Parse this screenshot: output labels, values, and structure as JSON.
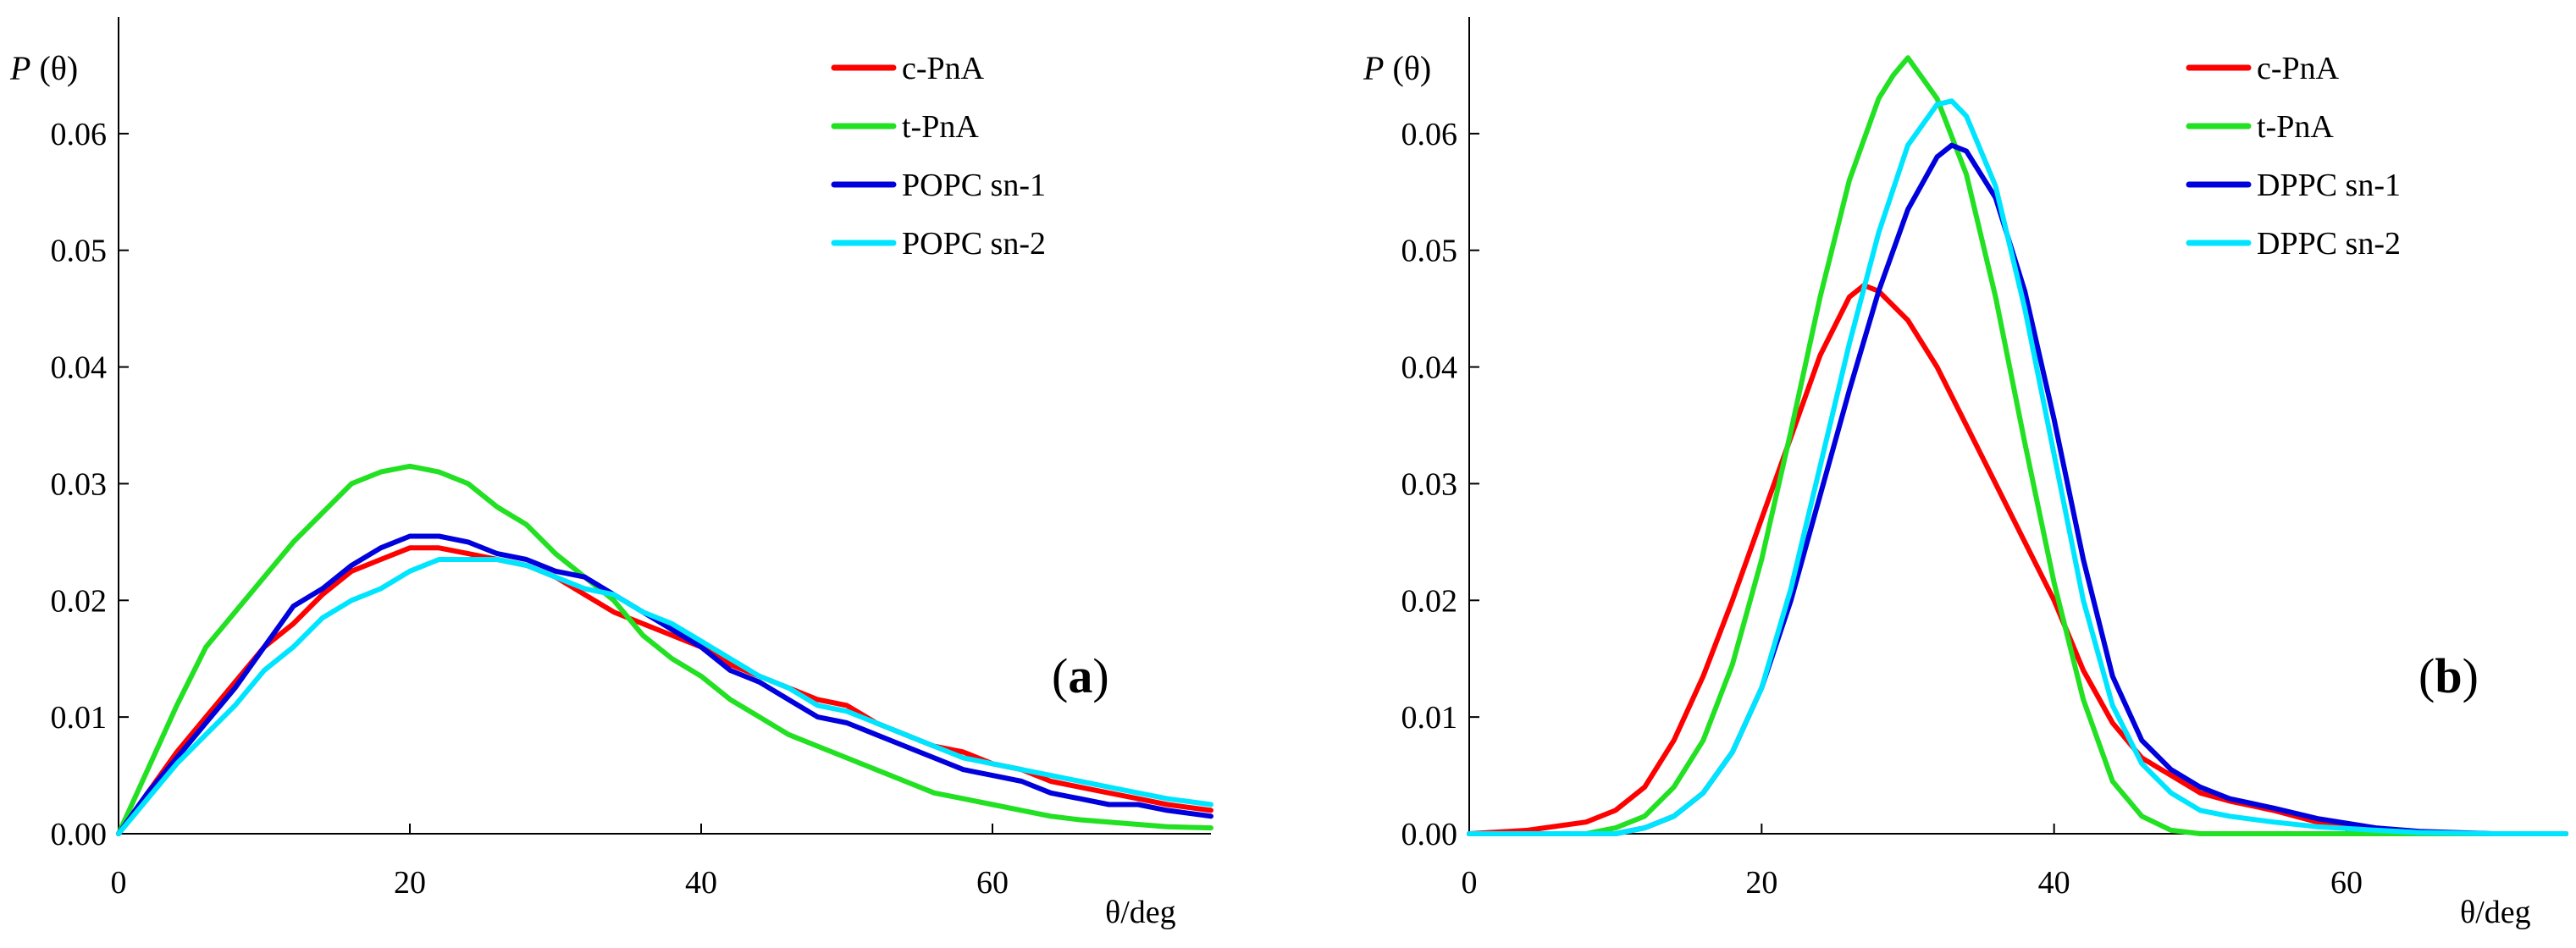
{
  "chart_data": [
    {
      "type": "line",
      "panel_label": "a",
      "ylabel_main": "P",
      "ylabel_arg": "(θ)",
      "xlabel": "θ/deg",
      "xlim": [
        0,
        75
      ],
      "ylim": [
        0,
        0.07
      ],
      "x_ticks": [
        "0",
        "20",
        "40",
        "60"
      ],
      "y_ticks": [
        "0.00",
        "0.01",
        "0.02",
        "0.03",
        "0.04",
        "0.05",
        "0.06"
      ],
      "legend_position": "top-right",
      "series": [
        {
          "name": "c-PnA",
          "color": "#ff0000",
          "x": [
            0,
            2,
            4,
            6,
            8,
            10,
            12,
            14,
            16,
            18,
            20,
            22,
            24,
            26,
            28,
            30,
            32,
            34,
            36,
            38,
            40,
            42,
            44,
            46,
            48,
            50,
            52,
            54,
            56,
            58,
            60,
            62,
            64,
            66,
            68,
            70,
            72,
            75
          ],
          "y": [
            0,
            0.0035,
            0.007,
            0.01,
            0.013,
            0.016,
            0.018,
            0.0205,
            0.0225,
            0.0235,
            0.0245,
            0.0245,
            0.024,
            0.0235,
            0.023,
            0.022,
            0.0205,
            0.019,
            0.018,
            0.017,
            0.016,
            0.0145,
            0.0135,
            0.0125,
            0.0115,
            0.011,
            0.0095,
            0.0085,
            0.0075,
            0.007,
            0.006,
            0.0055,
            0.0045,
            0.004,
            0.0035,
            0.003,
            0.0025,
            0.002
          ]
        },
        {
          "name": "t-PnA",
          "color": "#22e022",
          "x": [
            0,
            2,
            4,
            6,
            8,
            10,
            12,
            14,
            16,
            18,
            20,
            22,
            24,
            26,
            28,
            30,
            32,
            34,
            36,
            38,
            40,
            42,
            44,
            46,
            48,
            50,
            52,
            54,
            56,
            58,
            60,
            62,
            64,
            66,
            68,
            70,
            72,
            75
          ],
          "y": [
            0,
            0.0055,
            0.011,
            0.016,
            0.019,
            0.022,
            0.025,
            0.0275,
            0.03,
            0.031,
            0.0315,
            0.031,
            0.03,
            0.028,
            0.0265,
            0.024,
            0.022,
            0.02,
            0.017,
            0.015,
            0.0135,
            0.0115,
            0.01,
            0.0085,
            0.0075,
            0.0065,
            0.0055,
            0.0045,
            0.0035,
            0.003,
            0.0025,
            0.002,
            0.0015,
            0.0012,
            0.001,
            0.0008,
            0.0006,
            0.0005
          ]
        },
        {
          "name": "POPC sn-1",
          "color": "#0000dd",
          "x": [
            0,
            2,
            4,
            6,
            8,
            10,
            12,
            14,
            16,
            18,
            20,
            22,
            24,
            26,
            28,
            30,
            32,
            34,
            36,
            38,
            40,
            42,
            44,
            46,
            48,
            50,
            52,
            54,
            56,
            58,
            60,
            62,
            64,
            66,
            68,
            70,
            72,
            75
          ],
          "y": [
            0,
            0.0035,
            0.0065,
            0.0095,
            0.0125,
            0.016,
            0.0195,
            0.021,
            0.023,
            0.0245,
            0.0255,
            0.0255,
            0.025,
            0.024,
            0.0235,
            0.0225,
            0.022,
            0.0205,
            0.019,
            0.0175,
            0.016,
            0.014,
            0.013,
            0.0115,
            0.01,
            0.0095,
            0.0085,
            0.0075,
            0.0065,
            0.0055,
            0.005,
            0.0045,
            0.0035,
            0.003,
            0.0025,
            0.0025,
            0.002,
            0.0015
          ]
        },
        {
          "name": "POPC sn-2",
          "color": "#00e5ff",
          "x": [
            0,
            2,
            4,
            6,
            8,
            10,
            12,
            14,
            16,
            18,
            20,
            22,
            24,
            26,
            28,
            30,
            32,
            34,
            36,
            38,
            40,
            42,
            44,
            46,
            48,
            50,
            52,
            54,
            56,
            58,
            60,
            62,
            64,
            66,
            68,
            70,
            72,
            75
          ],
          "y": [
            0,
            0.003,
            0.006,
            0.0085,
            0.011,
            0.014,
            0.016,
            0.0185,
            0.02,
            0.021,
            0.0225,
            0.0235,
            0.0235,
            0.0235,
            0.023,
            0.022,
            0.021,
            0.0205,
            0.019,
            0.018,
            0.0165,
            0.015,
            0.0135,
            0.0125,
            0.011,
            0.0105,
            0.0095,
            0.0085,
            0.0075,
            0.0065,
            0.006,
            0.0055,
            0.005,
            0.0045,
            0.004,
            0.0035,
            0.003,
            0.0025
          ]
        }
      ]
    },
    {
      "type": "line",
      "panel_label": "b",
      "ylabel_main": "P",
      "ylabel_arg": "(θ)",
      "xlabel": "θ/deg",
      "xlim": [
        0,
        75
      ],
      "ylim": [
        0,
        0.07
      ],
      "x_ticks": [
        "0",
        "20",
        "40",
        "60"
      ],
      "y_ticks": [
        "0.00",
        "0.01",
        "0.02",
        "0.03",
        "0.04",
        "0.05",
        "0.06"
      ],
      "legend_position": "top-right",
      "series": [
        {
          "name": "c-PnA",
          "color": "#ff0000",
          "x": [
            0,
            4,
            8,
            10,
            12,
            14,
            16,
            18,
            20,
            22,
            24,
            26,
            27,
            28,
            30,
            32,
            34,
            36,
            38,
            40,
            42,
            44,
            46,
            48,
            50,
            52,
            55,
            58,
            60,
            62,
            65,
            70,
            75
          ],
          "y": [
            0,
            0.0003,
            0.001,
            0.002,
            0.004,
            0.008,
            0.0135,
            0.02,
            0.027,
            0.034,
            0.041,
            0.046,
            0.047,
            0.0465,
            0.044,
            0.04,
            0.035,
            0.03,
            0.025,
            0.02,
            0.014,
            0.0095,
            0.0065,
            0.005,
            0.0035,
            0.0028,
            0.002,
            0.001,
            0.0006,
            0.0003,
            0.0001,
            0,
            0
          ]
        },
        {
          "name": "t-PnA",
          "color": "#22e022",
          "x": [
            0,
            8,
            10,
            12,
            14,
            16,
            18,
            20,
            22,
            24,
            26,
            28,
            29,
            30,
            32,
            34,
            36,
            38,
            40,
            42,
            44,
            46,
            48,
            50,
            55,
            60,
            75
          ],
          "y": [
            0,
            0,
            0.0005,
            0.0015,
            0.004,
            0.008,
            0.0145,
            0.0235,
            0.0345,
            0.046,
            0.056,
            0.063,
            0.065,
            0.0665,
            0.063,
            0.0565,
            0.046,
            0.0335,
            0.0215,
            0.0115,
            0.0045,
            0.0015,
            0.0003,
            0,
            0,
            0,
            0
          ]
        },
        {
          "name": "DPPC sn-1",
          "color": "#0000dd",
          "x": [
            0,
            10,
            12,
            14,
            16,
            18,
            20,
            22,
            24,
            26,
            28,
            30,
            32,
            33,
            34,
            36,
            38,
            40,
            42,
            44,
            46,
            48,
            50,
            52,
            55,
            58,
            62,
            65,
            70,
            75
          ],
          "y": [
            0,
            0,
            0.0005,
            0.0015,
            0.0035,
            0.007,
            0.0125,
            0.02,
            0.029,
            0.038,
            0.0465,
            0.0535,
            0.058,
            0.059,
            0.0585,
            0.0545,
            0.0465,
            0.0355,
            0.0235,
            0.0135,
            0.008,
            0.0055,
            0.004,
            0.003,
            0.0022,
            0.0013,
            0.0005,
            0.0002,
            0,
            0
          ]
        },
        {
          "name": "DPPC sn-2",
          "color": "#00e5ff",
          "x": [
            0,
            10,
            12,
            14,
            16,
            18,
            20,
            22,
            24,
            26,
            28,
            30,
            32,
            33,
            34,
            36,
            38,
            40,
            42,
            44,
            46,
            48,
            50,
            52,
            55,
            58,
            62,
            65,
            70,
            75
          ],
          "y": [
            0,
            0,
            0.0005,
            0.0015,
            0.0035,
            0.007,
            0.0125,
            0.021,
            0.0315,
            0.042,
            0.0515,
            0.059,
            0.0625,
            0.0628,
            0.0615,
            0.0555,
            0.045,
            0.0325,
            0.02,
            0.011,
            0.006,
            0.0035,
            0.002,
            0.0015,
            0.001,
            0.0006,
            0.0003,
            0.0001,
            0,
            0
          ]
        }
      ]
    }
  ]
}
